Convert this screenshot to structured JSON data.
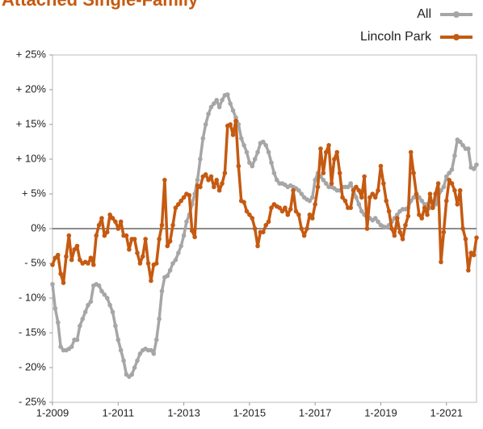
{
  "chart_data": {
    "type": "line",
    "title": "Attached Single-Family",
    "categories": [
      "1-2009",
      null,
      null,
      null,
      null,
      null,
      null,
      null,
      null,
      null,
      null,
      null,
      null,
      null,
      null,
      null,
      null,
      null,
      null,
      null,
      null,
      null,
      null,
      null,
      "1-2011",
      null,
      null,
      null,
      null,
      null,
      null,
      null,
      null,
      null,
      null,
      null,
      null,
      null,
      null,
      null,
      null,
      null,
      null,
      null,
      null,
      null,
      null,
      null,
      "1-2013",
      null,
      null,
      null,
      null,
      null,
      null,
      null,
      null,
      null,
      null,
      null,
      null,
      null,
      null,
      null,
      null,
      null,
      null,
      null,
      null,
      null,
      null,
      null,
      "1-2015",
      null,
      null,
      null,
      null,
      null,
      null,
      null,
      null,
      null,
      null,
      null,
      null,
      null,
      null,
      null,
      null,
      null,
      null,
      null,
      null,
      null,
      null,
      null,
      "1-2017",
      null,
      null,
      null,
      null,
      null,
      null,
      null,
      null,
      null,
      null,
      null,
      null,
      null,
      null,
      null,
      null,
      null,
      null,
      null,
      null,
      null,
      null,
      null,
      "1-2019",
      null,
      null,
      null,
      null,
      null,
      null,
      null,
      null,
      null,
      null,
      null,
      null,
      null,
      null,
      null,
      null,
      null,
      null,
      null,
      null,
      null,
      null,
      null,
      "1-2021",
      null,
      null,
      null,
      null,
      null,
      null,
      null,
      null,
      null,
      null,
      null
    ],
    "series": [
      {
        "name": "All",
        "color": "#a6a6a6",
        "values": [
          -8,
          -11.5,
          -13.5,
          -17,
          -17.5,
          -17.5,
          -17.3,
          -17,
          -16,
          -16,
          -14,
          -13,
          -12,
          -11,
          -10.5,
          -8.2,
          -8,
          -8.2,
          -9,
          -9.5,
          -10,
          -11,
          -12,
          -14,
          -16,
          -17.5,
          -19,
          -21,
          -21.3,
          -21,
          -20,
          -19,
          -18,
          -17.5,
          -17.3,
          -17.5,
          -17.5,
          -18,
          -16,
          -13,
          -9,
          -7,
          -6.8,
          -6,
          -5,
          -4.5,
          -3.5,
          -2.5,
          -1,
          1,
          2,
          3.5,
          5,
          7,
          10,
          13,
          15,
          16.5,
          17.5,
          18,
          18.5,
          17.5,
          18.5,
          19.2,
          19.3,
          18,
          17,
          16,
          15,
          13,
          12,
          11,
          9.5,
          9,
          10,
          11,
          12.3,
          12.5,
          12,
          11,
          9.5,
          8,
          7,
          6.5,
          6.5,
          6.3,
          6,
          6.2,
          6,
          5.8,
          5.5,
          5,
          4.5,
          4.2,
          4,
          4.5,
          7,
          8,
          7.5,
          7,
          6.5,
          6,
          6,
          5.8,
          5.5,
          5.5,
          6,
          6,
          6,
          6.5,
          5.5,
          4.5,
          3.5,
          2.5,
          2,
          1.5,
          1.5,
          1.2,
          1.5,
          1,
          0.5,
          0.3,
          0.2,
          0.5,
          1,
          1.5,
          2,
          2.5,
          2.8,
          2.8,
          3,
          4,
          4.5,
          5,
          4.5,
          4,
          3.5,
          3.5,
          3,
          3,
          3.5,
          4.5,
          5.5,
          6,
          7.5,
          8,
          8.5,
          10.5,
          12.8,
          12.5,
          12,
          11.5,
          11.5,
          8.8,
          8.6,
          9.2
        ]
      },
      {
        "name": "Lincoln Park",
        "color": "#c55a11",
        "values": [
          -5.2,
          -4.2,
          -3.8,
          -6.5,
          -7.8,
          -4,
          -1,
          -4.5,
          -3,
          -2.5,
          -4.5,
          -5,
          -4.8,
          -5,
          -4.2,
          -5.2,
          -1,
          0.5,
          1.5,
          -1,
          -0.5,
          2,
          1.5,
          1,
          0,
          1,
          -1,
          -1,
          -3,
          -1.5,
          -1.5,
          -3.5,
          -5,
          -4,
          -1.5,
          -5,
          -7.5,
          -5.2,
          -5,
          -1.5,
          0.5,
          7,
          -2.5,
          -1.8,
          0.5,
          3,
          3.5,
          4,
          4.5,
          5,
          4.8,
          -0.3,
          -1.2,
          6.2,
          6,
          7.5,
          7.8,
          7,
          7.5,
          6,
          7,
          5.5,
          6.5,
          8,
          14.8,
          15,
          13.5,
          15.5,
          9,
          4,
          3.8,
          2.5,
          2,
          1.5,
          0,
          -2.5,
          -0.5,
          -0.5,
          0.5,
          1,
          3,
          3.5,
          3.2,
          3,
          2.5,
          3,
          2,
          2.8,
          5.5,
          2.5,
          2,
          0,
          -1,
          0,
          2,
          1.5,
          3.5,
          6,
          11.5,
          8,
          11,
          12,
          6.5,
          10,
          11,
          8,
          4.5,
          4,
          3,
          3,
          5.5,
          6,
          5.5,
          4.5,
          7.5,
          0,
          4.5,
          5,
          4.5,
          5.5,
          9,
          6.5,
          4,
          2.5,
          0,
          -1,
          1.5,
          -0.5,
          -1.5,
          0.5,
          1.8,
          11,
          8,
          5,
          2,
          1.5,
          3,
          2,
          5,
          3,
          5,
          6.5,
          -4.8,
          -0.5,
          4,
          7,
          6.5,
          5.5,
          3.5,
          5.5,
          0,
          -1.5,
          -6,
          -3.5,
          -3.8,
          -1.3
        ]
      }
    ],
    "ylim": [
      -25,
      25
    ],
    "yticks": [
      {
        "value": -25,
        "label": "- 25%"
      },
      {
        "value": -20,
        "label": "- 20%"
      },
      {
        "value": -15,
        "label": "- 15%"
      },
      {
        "value": -10,
        "label": "- 10%"
      },
      {
        "value": -5,
        "label": "- 5%"
      },
      {
        "value": 0,
        "label": "0%"
      },
      {
        "value": 5,
        "label": "+ 5%"
      },
      {
        "value": 10,
        "label": "+ 10%"
      },
      {
        "value": 15,
        "label": "+ 15%"
      },
      {
        "value": 20,
        "label": "+ 20%"
      },
      {
        "value": 25,
        "label": "+ 25%"
      }
    ],
    "legend": "top-right"
  }
}
